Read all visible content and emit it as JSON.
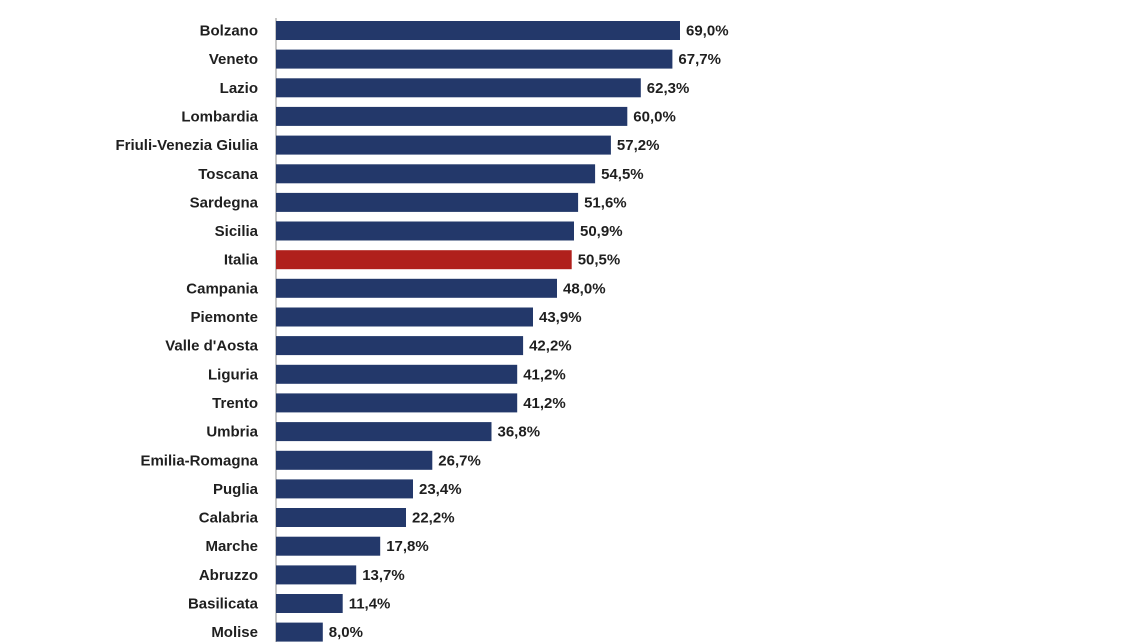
{
  "chart_data": {
    "type": "bar",
    "orientation": "horizontal",
    "title": "",
    "xlabel": "",
    "ylabel": "",
    "xlim": [
      0,
      70
    ],
    "grid": false,
    "legend": "none",
    "value_format": "percent_comma_1dp",
    "categories": [
      "Bolzano",
      "Veneto",
      "Lazio",
      "Lombardia",
      "Friuli-Venezia Giulia",
      "Toscana",
      "Sardegna",
      "Sicilia",
      "Italia",
      "Campania",
      "Piemonte",
      "Valle d'Aosta",
      "Liguria",
      "Trento",
      "Umbria",
      "Emilia-Romagna",
      "Puglia",
      "Calabria",
      "Marche",
      "Abruzzo",
      "Basilicata",
      "Molise"
    ],
    "values": [
      69.0,
      67.7,
      62.3,
      60.0,
      57.2,
      54.5,
      51.6,
      50.9,
      50.5,
      48.0,
      43.9,
      42.2,
      41.2,
      41.2,
      36.8,
      26.7,
      23.4,
      22.2,
      17.8,
      13.7,
      11.4,
      8.0
    ],
    "value_labels": [
      "69,0%",
      "67,7%",
      "62,3%",
      "60,0%",
      "57,2%",
      "54,5%",
      "51,6%",
      "50,9%",
      "50,5%",
      "48,0%",
      "43,9%",
      "42,2%",
      "41,2%",
      "41,2%",
      "36,8%",
      "26,7%",
      "23,4%",
      "22,2%",
      "17,8%",
      "13,7%",
      "11,4%",
      "8,0%"
    ],
    "highlight_category": "Italia",
    "colors": {
      "bar": "#23386a",
      "highlight": "#b0201c",
      "text": "#1f1f1f",
      "axis": "#8c8c8c"
    }
  }
}
